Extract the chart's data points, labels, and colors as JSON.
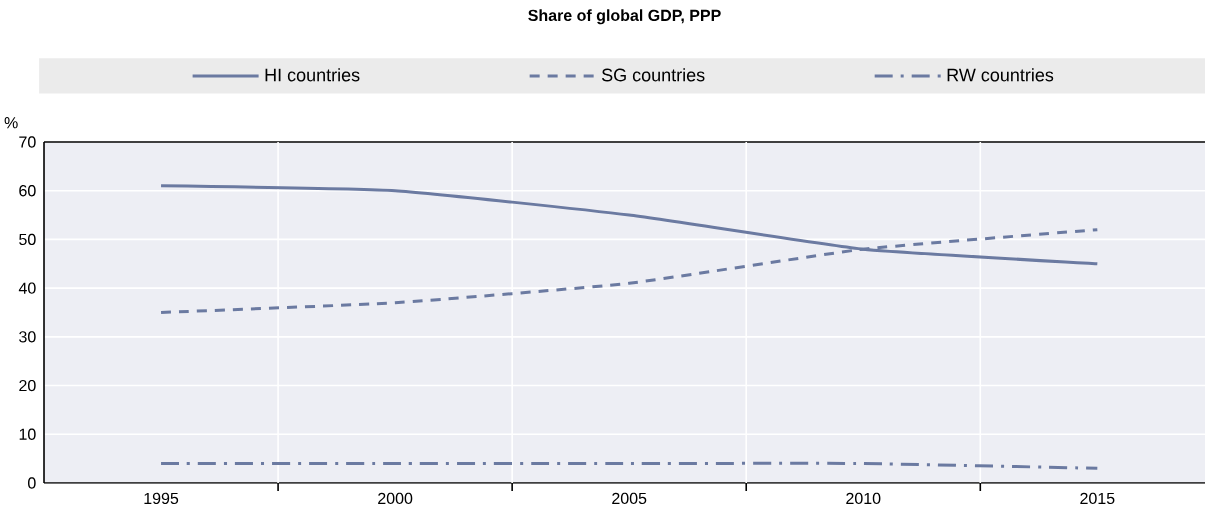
{
  "chart_data": {
    "type": "line",
    "title": "Share of global GDP, PPP",
    "ylabel": "%",
    "categories": [
      "1995",
      "2000",
      "2005",
      "2010",
      "2015"
    ],
    "series": [
      {
        "name": "HI countries",
        "color": "#6b7aa1",
        "line_style": "solid",
        "values": [
          61,
          60,
          55,
          48,
          45
        ]
      },
      {
        "name": "SG countries",
        "color": "#6b7aa1",
        "line_style": "dashed",
        "values": [
          35,
          37,
          41,
          48,
          52
        ]
      },
      {
        "name": "RW countries",
        "color": "#6b7aa1",
        "line_style": "dashdot",
        "values": [
          4,
          4,
          4,
          4,
          3
        ]
      }
    ],
    "ylim": [
      0,
      70
    ],
    "yticks": [
      0,
      10,
      20,
      30,
      40,
      50,
      60,
      70
    ],
    "grid": true,
    "legend": "top",
    "marker": "none"
  }
}
